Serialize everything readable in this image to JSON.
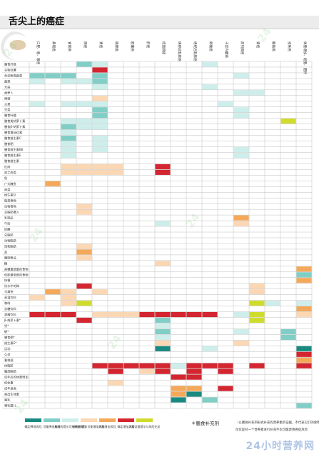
{
  "page": {
    "title": "舌尖上的癌症",
    "watermark_site": "24小时营养网"
  },
  "colors": {
    "dark_teal": "#1a8a80",
    "light_teal": "#80cec6",
    "pale_teal": "#cdeeea",
    "pale_orange": "#fbd7b4",
    "orange": "#f4a95a",
    "red": "#d32630",
    "yellow_green": "#cfdc2d",
    "grid": "#bfbfbf"
  },
  "chart_data": {
    "type": "heatmap",
    "title": "舌尖上的癌症",
    "columns": [
      "口腔、咽、喉癌",
      "鼻咽癌",
      "食管癌",
      "肺癌",
      "胃癌",
      "胰腺癌",
      "胆囊癌",
      "肝癌",
      "结直肠癌",
      "绝经前乳腺癌",
      "绝经后乳腺癌",
      "卵巢癌",
      "子宫内膜癌",
      "前列腺癌",
      "肾癌",
      "膀胱癌",
      "皮肤癌",
      "体重增加、超重、肥胖"
    ],
    "rows": [
      "膳食纤维",
      "谷物及薯",
      "含淀粉类蔬菜",
      "蔬菜",
      "大蒜",
      "胡萝卜",
      "辣椒",
      "水果",
      "豆类",
      "膳食叶酸",
      "膳食类胡萝卜素",
      "膳食β-胡萝卜素",
      "膳食番茄红素",
      "膳食维生素C",
      "膳食硒",
      "膳食维生素B6",
      "膳食维生素E",
      "膳食维生素",
      "红肉",
      "加工肉类",
      "鱼",
      "广式腌鱼",
      "肉类",
      "维生素D",
      "脂类食物",
      "动物食物",
      "总脂肪摄入",
      "乳制品",
      "牛奶",
      "奶酪",
      "总脂肪",
      "动物脂肪",
      "饱和脂肪",
      "盐",
      "腌制食品",
      "糖",
      "高糖量能量的食物",
      "低能量密度的食物",
      "快餐",
      "饮水中的砷",
      "马黛茶",
      "高温饮料",
      "咖啡",
      "含糖饮料",
      "酒精饮料",
      "β-胡萝卜素*",
      "钙*",
      "硒*",
      "膳食硒*",
      "维生素E*",
      "运动",
      "久坐",
      "看电视",
      "体脂肪",
      "腹部脂肪",
      "成年后的体重增加",
      "低体重",
      "成年身高",
      "高出生体重",
      "哺乳",
      "哺乳婴儿"
    ],
    "cells": [
      [
        0,
        3,
        "light_teal"
      ],
      [
        0,
        4,
        "pale_teal"
      ],
      [
        0,
        11,
        "pale_teal"
      ],
      [
        1,
        4,
        "red"
      ],
      [
        2,
        0,
        "light_teal"
      ],
      [
        2,
        1,
        "light_teal"
      ],
      [
        2,
        2,
        "light_teal"
      ],
      [
        2,
        4,
        "light_teal"
      ],
      [
        2,
        13,
        "pale_teal"
      ],
      [
        3,
        0,
        "pale_teal"
      ],
      [
        3,
        2,
        "pale_teal"
      ],
      [
        3,
        3,
        "pale_teal"
      ],
      [
        3,
        4,
        "light_teal"
      ],
      [
        4,
        4,
        "pale_teal"
      ],
      [
        4,
        11,
        "pale_teal"
      ],
      [
        5,
        13,
        "pale_teal"
      ],
      [
        5,
        14,
        "pale_teal"
      ],
      [
        6,
        4,
        "pale_orange"
      ],
      [
        7,
        0,
        "pale_teal"
      ],
      [
        7,
        2,
        "pale_teal"
      ],
      [
        7,
        3,
        "pale_teal"
      ],
      [
        7,
        4,
        "pale_teal"
      ],
      [
        7,
        12,
        "pale_teal"
      ],
      [
        8,
        4,
        "light_teal"
      ],
      [
        8,
        13,
        "pale_teal"
      ],
      [
        9,
        4,
        "light_teal"
      ],
      [
        9,
        13,
        "pale_teal"
      ],
      [
        10,
        2,
        "pale_teal"
      ],
      [
        10,
        3,
        "pale_teal"
      ],
      [
        10,
        4,
        "pale_teal"
      ],
      [
        10,
        16,
        "yellow_green"
      ],
      [
        11,
        2,
        "light_teal"
      ],
      [
        11,
        3,
        "pale_teal"
      ],
      [
        11,
        4,
        "pale_teal"
      ],
      [
        12,
        2,
        "pale_teal"
      ],
      [
        13,
        2,
        "light_teal"
      ],
      [
        13,
        4,
        "pale_teal"
      ],
      [
        14,
        2,
        "pale_teal"
      ],
      [
        14,
        4,
        "pale_teal"
      ],
      [
        15,
        2,
        "pale_teal"
      ],
      [
        15,
        4,
        "pale_teal"
      ],
      [
        15,
        13,
        "pale_teal"
      ],
      [
        16,
        2,
        "pale_teal"
      ],
      [
        16,
        13,
        "pale_teal"
      ],
      [
        18,
        2,
        "pale_orange"
      ],
      [
        18,
        3,
        "pale_orange"
      ],
      [
        18,
        4,
        "pale_orange"
      ],
      [
        18,
        5,
        "pale_orange"
      ],
      [
        18,
        8,
        "red"
      ],
      [
        19,
        2,
        "pale_orange"
      ],
      [
        19,
        3,
        "pale_orange"
      ],
      [
        19,
        4,
        "pale_orange"
      ],
      [
        19,
        5,
        "pale_orange"
      ],
      [
        19,
        8,
        "red"
      ],
      [
        21,
        1,
        "orange"
      ],
      [
        25,
        3,
        "pale_orange"
      ],
      [
        26,
        3,
        "pale_orange"
      ],
      [
        27,
        13,
        "orange"
      ],
      [
        28,
        8,
        "pale_teal"
      ],
      [
        28,
        13,
        "pale_orange"
      ],
      [
        32,
        3,
        "pale_orange"
      ],
      [
        33,
        3,
        "orange"
      ],
      [
        34,
        3,
        "pale_orange"
      ],
      [
        35,
        8,
        "pale_orange"
      ],
      [
        36,
        17,
        "orange"
      ],
      [
        37,
        17,
        "light_teal"
      ],
      [
        38,
        17,
        "orange"
      ],
      [
        39,
        3,
        "red"
      ],
      [
        39,
        14,
        "pale_orange"
      ],
      [
        40,
        1,
        "orange"
      ],
      [
        40,
        2,
        "pale_orange"
      ],
      [
        40,
        4,
        "pale_orange"
      ],
      [
        40,
        14,
        "pale_orange"
      ],
      [
        41,
        0,
        "pale_orange"
      ],
      [
        41,
        2,
        "pale_orange"
      ],
      [
        42,
        2,
        "pale_orange"
      ],
      [
        42,
        3,
        "yellow_green"
      ],
      [
        42,
        14,
        "yellow_green"
      ],
      [
        42,
        15,
        "pale_teal"
      ],
      [
        42,
        17,
        "pale_teal"
      ],
      [
        43,
        17,
        "orange"
      ],
      [
        44,
        0,
        "red"
      ],
      [
        44,
        1,
        "red"
      ],
      [
        44,
        2,
        "red"
      ],
      [
        44,
        4,
        "pale_orange"
      ],
      [
        44,
        5,
        "pale_orange"
      ],
      [
        44,
        6,
        "pale_orange"
      ],
      [
        44,
        7,
        "red"
      ],
      [
        44,
        8,
        "red"
      ],
      [
        44,
        9,
        "red"
      ],
      [
        44,
        10,
        "red"
      ],
      [
        44,
        11,
        "red"
      ],
      [
        44,
        13,
        "pale_teal"
      ],
      [
        44,
        14,
        "yellow_green"
      ],
      [
        44,
        17,
        "pale_orange"
      ],
      [
        45,
        3,
        "red"
      ],
      [
        45,
        8,
        "light_teal"
      ],
      [
        45,
        14,
        "yellow_green"
      ],
      [
        46,
        8,
        "pale_teal"
      ],
      [
        47,
        8,
        "light_teal"
      ],
      [
        47,
        13,
        "pale_teal"
      ],
      [
        47,
        16,
        "light_teal"
      ],
      [
        48,
        8,
        "pale_teal"
      ],
      [
        48,
        16,
        "light_teal"
      ],
      [
        49,
        8,
        "pale_orange"
      ],
      [
        49,
        13,
        "pale_orange"
      ],
      [
        50,
        8,
        "dark_teal"
      ],
      [
        50,
        11,
        "pale_teal"
      ],
      [
        50,
        17,
        "dark_teal"
      ],
      [
        51,
        17,
        "red"
      ],
      [
        52,
        17,
        "orange"
      ],
      [
        53,
        4,
        "red"
      ],
      [
        53,
        5,
        "red"
      ],
      [
        53,
        6,
        "red"
      ],
      [
        53,
        7,
        "red"
      ],
      [
        53,
        8,
        "red"
      ],
      [
        53,
        9,
        "pale_teal"
      ],
      [
        53,
        10,
        "red"
      ],
      [
        53,
        11,
        "red"
      ],
      [
        53,
        12,
        "red"
      ],
      [
        53,
        14,
        "red"
      ],
      [
        53,
        17,
        "red"
      ],
      [
        54,
        5,
        "red"
      ],
      [
        54,
        7,
        "pale_orange"
      ],
      [
        54,
        8,
        "red"
      ],
      [
        54,
        10,
        "red"
      ],
      [
        54,
        12,
        "red"
      ],
      [
        55,
        9,
        "red"
      ],
      [
        55,
        10,
        "red"
      ],
      [
        56,
        5,
        "pale_orange"
      ],
      [
        57,
        9,
        "orange"
      ],
      [
        57,
        10,
        "orange"
      ],
      [
        57,
        12,
        "red"
      ],
      [
        58,
        9,
        "orange"
      ],
      [
        58,
        10,
        "dark_teal"
      ],
      [
        59,
        9,
        "dark_teal"
      ],
      [
        59,
        11,
        "light_teal"
      ],
      [
        60,
        17,
        "light_teal"
      ]
    ],
    "legend": [
      {
        "color": "dark_teal",
        "label": "确定降低风险"
      },
      {
        "color": "light_teal",
        "label": "可能降低风险"
      },
      {
        "color": "pale_teal",
        "label": "有限的提示可能降低风险"
      },
      {
        "color": "pale_orange",
        "label": "有限的提示可能增加风险"
      },
      {
        "color": "orange",
        "label": "可能增加风险"
      },
      {
        "color": "red",
        "label": "确定增加风险"
      },
      {
        "color": "yellow_green",
        "label": "大量证据提示与风险无关"
      }
    ],
    "notes": {
      "asterisk": "＊膳食补充剂",
      "supplement": "（以膳食补充剂形式补充的营养素的证据，不代表它们的食物来源）",
      "footer": "仅仅是对一个营养素进行补充不太可能改善癌症风险"
    }
  }
}
